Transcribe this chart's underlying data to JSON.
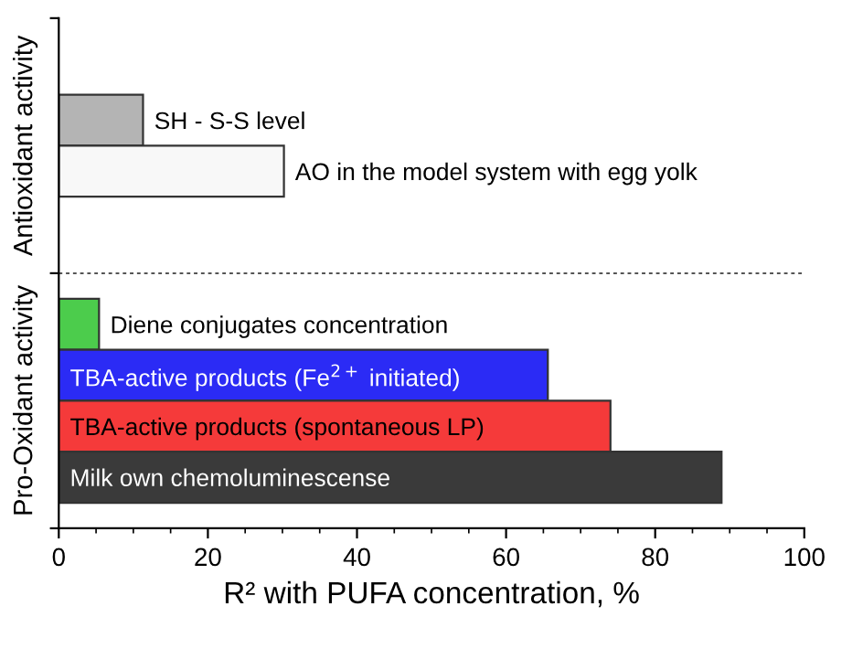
{
  "chart_data": {
    "type": "bar",
    "orientation": "horizontal",
    "xlabel": "R² with PUFA concentration, %",
    "categories": [
      "SH - S-S level",
      "AO in the model system with egg yolk",
      null,
      null,
      "Diene conjugates concentration",
      "TBA-active products (Fe$^{2+}$ initiated)",
      "TBA-active products (spontaneous LP)",
      "Milk own chemoluminescense"
    ],
    "values": [
      11.3,
      30.2,
      null,
      null,
      5.4,
      65.6,
      74,
      88.9
    ],
    "colors": [
      "#b4b4b4",
      "#f8f8f8",
      null,
      null,
      "#4ccc4c",
      "#2b2bf5",
      "#f53a3a",
      "#3a3a3a"
    ],
    "xlim": [
      0,
      100
    ],
    "xticks": [
      0,
      20,
      40,
      60,
      80,
      100
    ],
    "annotations": [
      "Antioxidant activity",
      "Pro-Oxidant activity"
    ],
    "grid": false,
    "legend": false
  }
}
